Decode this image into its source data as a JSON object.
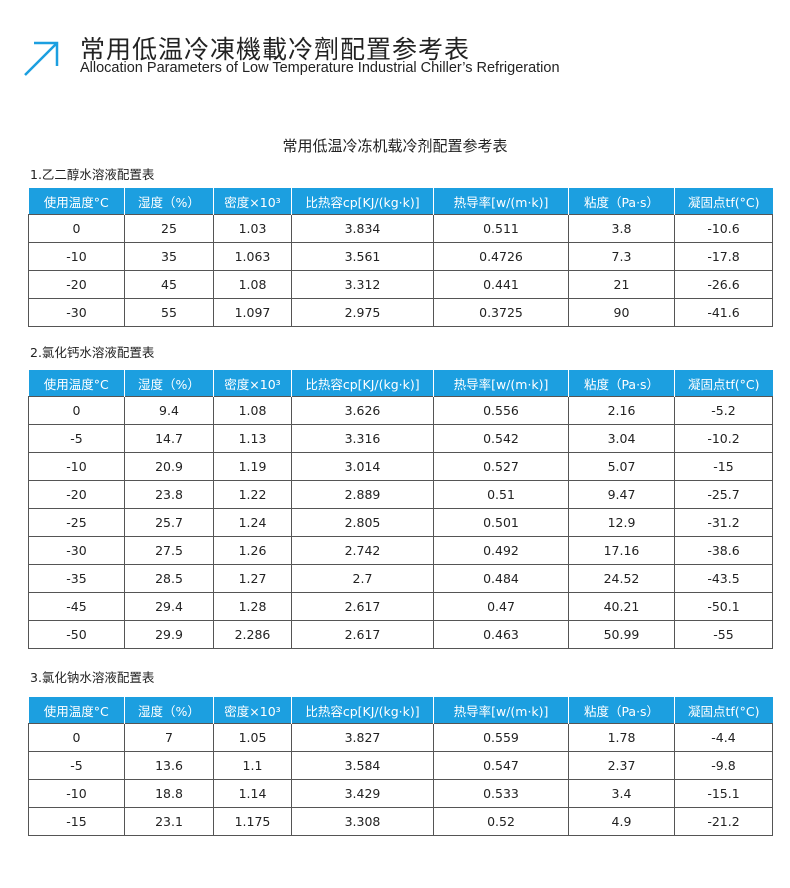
{
  "header": {
    "title_cn": "常用低温冷凍機載冷劑配置参考表",
    "title_en": "Allocation Parameters of Low Temperature Industrial Chiller’s Refrigeration",
    "accent": "#1c9fe0",
    "icon": "arrow-up-right-icon"
  },
  "main_title": "常用低温冷冻机载冷剂配置参考表",
  "columns": [
    "使用温度°C",
    "湿度（%）",
    "密度×10³",
    "比热容cp[KJ/(kg·k)]",
    "热导率[w/(m·k)]",
    "粘度（Pa·s）",
    "凝固点tf(°C)"
  ],
  "tables": [
    {
      "label": "1.乙二醇水溶液配置表",
      "rows": [
        [
          "0",
          "25",
          "1.03",
          "3.834",
          "0.511",
          "3.8",
          "-10.6"
        ],
        [
          "-10",
          "35",
          "1.063",
          "3.561",
          "0.4726",
          "7.3",
          "-17.8"
        ],
        [
          "-20",
          "45",
          "1.08",
          "3.312",
          "0.441",
          "21",
          "-26.6"
        ],
        [
          "-30",
          "55",
          "1.097",
          "2.975",
          "0.3725",
          "90",
          "-41.6"
        ]
      ]
    },
    {
      "label": "2.氯化钙水溶液配置表",
      "rows": [
        [
          "0",
          "9.4",
          "1.08",
          "3.626",
          "0.556",
          "2.16",
          "-5.2"
        ],
        [
          "-5",
          "14.7",
          "1.13",
          "3.316",
          "0.542",
          "3.04",
          "-10.2"
        ],
        [
          "-10",
          "20.9",
          "1.19",
          "3.014",
          "0.527",
          "5.07",
          "-15"
        ],
        [
          "-20",
          "23.8",
          "1.22",
          "2.889",
          "0.51",
          "9.47",
          "-25.7"
        ],
        [
          "-25",
          "25.7",
          "1.24",
          "2.805",
          "0.501",
          "12.9",
          "-31.2"
        ],
        [
          "-30",
          "27.5",
          "1.26",
          "2.742",
          "0.492",
          "17.16",
          "-38.6"
        ],
        [
          "-35",
          "28.5",
          "1.27",
          "2.7",
          "0.484",
          "24.52",
          "-43.5"
        ],
        [
          "-45",
          "29.4",
          "1.28",
          "2.617",
          "0.47",
          "40.21",
          "-50.1"
        ],
        [
          "-50",
          "29.9",
          "2.286",
          "2.617",
          "0.463",
          "50.99",
          "-55"
        ]
      ]
    },
    {
      "label": "3.氯化钠水溶液配置表",
      "rows": [
        [
          "0",
          "7",
          "1.05",
          "3.827",
          "0.559",
          "1.78",
          "-4.4"
        ],
        [
          "-5",
          "13.6",
          "1.1",
          "3.584",
          "0.547",
          "2.37",
          "-9.8"
        ],
        [
          "-10",
          "18.8",
          "1.14",
          "3.429",
          "0.533",
          "3.4",
          "-15.1"
        ],
        [
          "-15",
          "23.1",
          "1.175",
          "3.308",
          "0.52",
          "4.9",
          "-21.2"
        ]
      ]
    }
  ]
}
